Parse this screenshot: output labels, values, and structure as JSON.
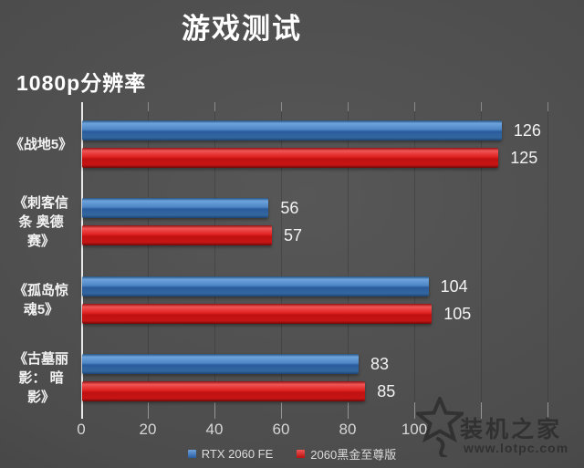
{
  "title": "游戏测试",
  "subtitle": "1080p分辨率",
  "chart_data": {
    "type": "bar",
    "orientation": "horizontal",
    "title": "游戏测试",
    "subtitle": "1080p分辨率",
    "categories": [
      "《战地5》",
      "《刺客信条 奥德赛》",
      "《孤岛惊魂5》",
      "《古墓丽影：暗影》"
    ],
    "category_display_lines": [
      [
        "《战地5》"
      ],
      [
        "《刺客信",
        "条 奥德",
        "赛》"
      ],
      [
        "《孤岛惊",
        "魂5》"
      ],
      [
        "《古墓丽",
        "影： 暗",
        "影》"
      ]
    ],
    "series": [
      {
        "name": "RTX 2060 FE",
        "color": "#4d86c4",
        "values": [
          126,
          56,
          104,
          83
        ]
      },
      {
        "name": "2060黑金至尊版",
        "color": "#d51717",
        "values": [
          125,
          57,
          105,
          85
        ]
      }
    ],
    "x_ticks": [
      0,
      20,
      40,
      60,
      80,
      100
    ],
    "xlim": [
      0,
      140
    ],
    "grid": true,
    "legend_position": "bottom",
    "value_labels_shown": true
  },
  "colors": {
    "background": "#4c4c4c",
    "blue_bar": "#4d86c4",
    "red_bar": "#d51717",
    "text": "#ffffff",
    "tick_text": "#d6d6d6"
  },
  "watermark": {
    "brand": "装机之家",
    "url": "www.lotpc.com"
  }
}
